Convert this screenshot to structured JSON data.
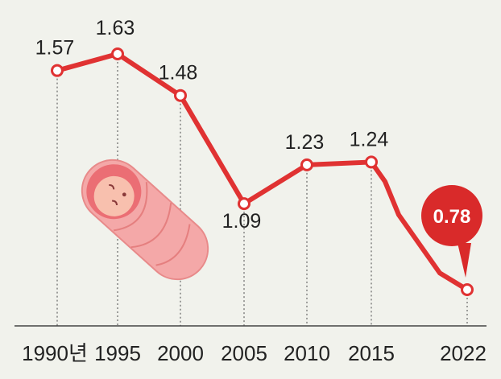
{
  "chart_data": {
    "type": "line",
    "x": [
      1990,
      1995,
      2000,
      2005,
      2010,
      2015,
      2022
    ],
    "x_tick_labels": [
      "1990년",
      "1995",
      "2000",
      "2005",
      "2010",
      "2015",
      "2022"
    ],
    "series": [
      {
        "values": [
          1.57,
          1.63,
          1.48,
          1.09,
          1.23,
          1.24,
          0.78
        ],
        "labels": [
          "1.57",
          "1.63",
          "1.48",
          "1.09",
          "1.23",
          "1.24",
          "0.78"
        ]
      }
    ],
    "intermediate_points": [
      {
        "x": 2016,
        "y": 1.17
      },
      {
        "x": 2017,
        "y": 1.05
      },
      {
        "x": 2018,
        "y": 0.98
      },
      {
        "x": 2020,
        "y": 0.84
      }
    ],
    "highlight": {
      "index": 6,
      "label": "0.78"
    },
    "title": "",
    "xlabel": "",
    "ylabel": "",
    "ylim": [
      0.78,
      1.63
    ],
    "grid": "vertical dotted drop-lines",
    "line_color": "#e03232",
    "callout_color": "#d92a2a",
    "decoration": "baby-icon"
  }
}
